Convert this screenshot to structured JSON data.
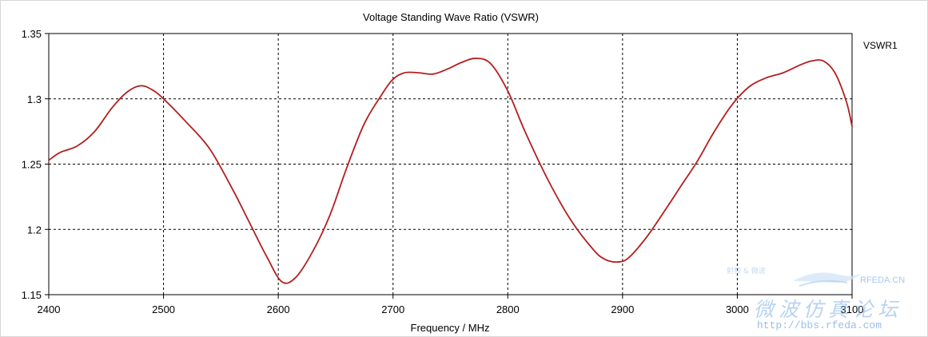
{
  "chart_data": {
    "type": "line",
    "title": "Voltage Standing Wave Ratio (VSWR)",
    "xlabel": "Frequency / MHz",
    "ylabel": "",
    "xlim": [
      2400,
      3100
    ],
    "ylim": [
      1.15,
      1.35
    ],
    "xticks": [
      2400,
      2500,
      2600,
      2700,
      2800,
      2900,
      3000,
      3100
    ],
    "yticks": [
      1.15,
      1.2,
      1.25,
      1.3,
      1.35
    ],
    "ytick_labels": [
      "1.15",
      "1.2",
      "1.25",
      "1.3",
      "1.35"
    ],
    "grid": true,
    "legend": "right",
    "series": [
      {
        "name": "VSWR1",
        "color": "#b41e1e",
        "x": [
          2400,
          2410,
          2425,
          2440,
          2455,
          2468,
          2480,
          2490,
          2500,
          2520,
          2540,
          2560,
          2575,
          2590,
          2603,
          2615,
          2630,
          2645,
          2660,
          2675,
          2690,
          2700,
          2710,
          2722,
          2735,
          2748,
          2760,
          2772,
          2785,
          2800,
          2815,
          2835,
          2855,
          2875,
          2885,
          2895,
          2905,
          2920,
          2935,
          2950,
          2965,
          2980,
          2995,
          3010,
          3025,
          3040,
          3055,
          3065,
          3075,
          3085,
          3095,
          3100
        ],
        "y": [
          1.253,
          1.259,
          1.264,
          1.275,
          1.293,
          1.305,
          1.31,
          1.307,
          1.3,
          1.282,
          1.262,
          1.231,
          1.205,
          1.179,
          1.16,
          1.163,
          1.183,
          1.211,
          1.248,
          1.281,
          1.303,
          1.315,
          1.32,
          1.32,
          1.319,
          1.323,
          1.328,
          1.331,
          1.327,
          1.306,
          1.275,
          1.238,
          1.207,
          1.184,
          1.177,
          1.175,
          1.178,
          1.193,
          1.212,
          1.232,
          1.252,
          1.275,
          1.295,
          1.309,
          1.316,
          1.32,
          1.326,
          1.329,
          1.329,
          1.32,
          1.298,
          1.279
        ]
      }
    ]
  },
  "watermark": {
    "brand": "RFEDA.CN",
    "chinese": "微波仿真论坛",
    "url": "http://bbs.rfeda.com",
    "small": "射频 & 微波"
  }
}
